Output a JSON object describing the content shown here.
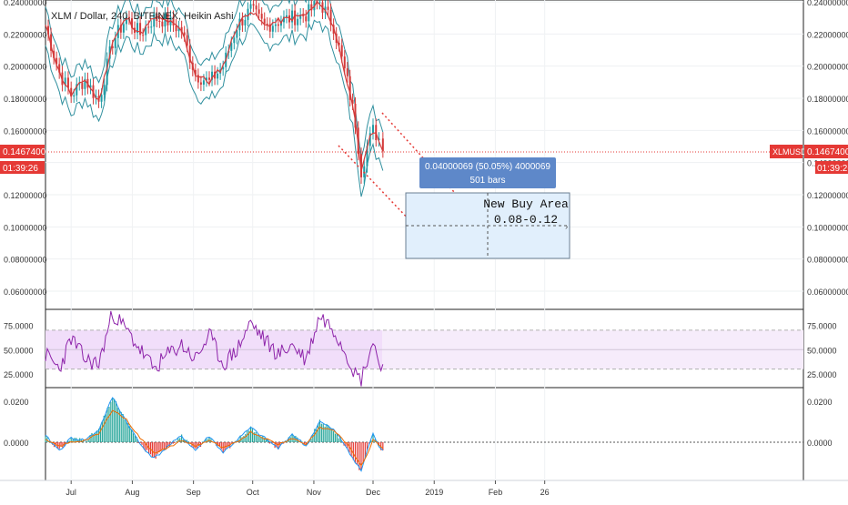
{
  "header": {
    "symbol_line": "XLM / Dollar, 240, BITFINEX, Heikin Ashi"
  },
  "price_tag": {
    "price": "0.14674000",
    "countdown": "01:39:26",
    "ticker": "XLMUSD"
  },
  "measure_box": {
    "line1": "0.04000069 (50.05%) 4000069",
    "line2": "501 bars"
  },
  "annotation": {
    "title": "New Buy Area",
    "range": "0.08-0.12"
  },
  "colors": {
    "candle_up": "#1f9ba4",
    "candle_down": "#d43a3a",
    "ema_fast": "#d23b3b",
    "band": "#2f8f9e",
    "osc_line": "#8e24aa",
    "osc_band_fill": "#f1defa",
    "price_line": "#e53935",
    "measure_box": "#5e88c9",
    "buy_area_fill": "#e1effc",
    "buy_area_border": "#6b7f93"
  },
  "chart_data": [
    {
      "type": "line",
      "title": "XLM / Dollar, 240, BITFINEX, Heikin Ashi",
      "x_tick_labels": [
        "Jul",
        "Aug",
        "Sep",
        "Oct",
        "Nov",
        "Dec",
        "2019",
        "Feb",
        "26"
      ],
      "y_tick_labels": [
        "0.06000000",
        "0.08000000",
        "0.10000000",
        "0.12000000",
        "0.14000000",
        "0.16000000",
        "0.18000000",
        "0.20000000",
        "0.22000000",
        "0.24000000"
      ],
      "ylim": [
        0.05,
        0.24
      ],
      "last_price": 0.14674,
      "x": [
        "2018-06-18",
        "2018-06-25",
        "2018-07-01",
        "2018-07-08",
        "2018-07-15",
        "2018-07-22",
        "2018-07-29",
        "2018-08-05",
        "2018-08-12",
        "2018-08-19",
        "2018-08-26",
        "2018-09-02",
        "2018-09-09",
        "2018-09-16",
        "2018-09-23",
        "2018-09-30",
        "2018-10-07",
        "2018-10-14",
        "2018-10-21",
        "2018-10-28",
        "2018-11-04",
        "2018-11-11",
        "2018-11-18",
        "2018-11-22",
        "2018-11-25",
        "2018-11-28",
        "2018-12-01",
        "2018-12-04",
        "2018-12-06"
      ],
      "series": [
        {
          "values": [
            0.225,
            0.196,
            0.182,
            0.192,
            0.178,
            0.215,
            0.23,
            0.22,
            0.23,
            0.228,
            0.222,
            0.195,
            0.19,
            0.2,
            0.225,
            0.235,
            0.225,
            0.228,
            0.23,
            0.232,
            0.24,
            0.225,
            0.19,
            0.165,
            0.135,
            0.15,
            0.16,
            0.155,
            0.147
          ]
        }
      ],
      "measure": {
        "from_price": 0.16,
        "to_price": 0.12,
        "text": "0.04000069 (50.05%) 4000069",
        "bars": "501 bars"
      },
      "buy_area": {
        "label": "New Buy Area",
        "range_text": "0.08-0.12",
        "from": 0.08,
        "to": 0.12
      }
    },
    {
      "type": "line",
      "y_tick_labels": [
        "25.0000",
        "50.0000",
        "75.0000"
      ],
      "ylim": [
        10,
        95
      ],
      "band": [
        30,
        70
      ],
      "x": [
        "2018-06-18",
        "2018-06-25",
        "2018-07-01",
        "2018-07-08",
        "2018-07-15",
        "2018-07-22",
        "2018-07-29",
        "2018-08-05",
        "2018-08-12",
        "2018-08-19",
        "2018-08-26",
        "2018-09-02",
        "2018-09-09",
        "2018-09-16",
        "2018-09-23",
        "2018-09-30",
        "2018-10-07",
        "2018-10-14",
        "2018-10-21",
        "2018-10-28",
        "2018-11-04",
        "2018-11-11",
        "2018-11-18",
        "2018-11-22",
        "2018-11-25",
        "2018-11-28",
        "2018-12-01",
        "2018-12-04",
        "2018-12-06"
      ],
      "series": [
        {
          "values": [
            45,
            30,
            62,
            40,
            35,
            88,
            70,
            50,
            30,
            45,
            55,
            40,
            65,
            35,
            50,
            78,
            60,
            45,
            55,
            40,
            85,
            72,
            45,
            25,
            20,
            40,
            58,
            38,
            35
          ]
        }
      ]
    },
    {
      "type": "line",
      "y_tick_labels": [
        "0.0000",
        "0.0200"
      ],
      "ylim": [
        -0.016,
        0.026
      ],
      "x": [
        "2018-06-18",
        "2018-06-25",
        "2018-07-01",
        "2018-07-08",
        "2018-07-15",
        "2018-07-22",
        "2018-07-29",
        "2018-08-05",
        "2018-08-12",
        "2018-08-19",
        "2018-08-26",
        "2018-09-02",
        "2018-09-09",
        "2018-09-16",
        "2018-09-23",
        "2018-09-30",
        "2018-10-07",
        "2018-10-14",
        "2018-10-21",
        "2018-10-28",
        "2018-11-04",
        "2018-11-11",
        "2018-11-18",
        "2018-11-22",
        "2018-11-25",
        "2018-11-28",
        "2018-12-01",
        "2018-12-04",
        "2018-12-06"
      ],
      "series": [
        {
          "values": [
            0.003,
            -0.004,
            0.002,
            0.001,
            0.006,
            0.022,
            0.01,
            -0.001,
            -0.008,
            -0.002,
            0.003,
            -0.004,
            0.003,
            -0.005,
            0.001,
            0.007,
            0.002,
            -0.003,
            0.004,
            -0.002,
            0.01,
            0.006,
            -0.003,
            -0.01,
            -0.014,
            -0.004,
            0.004,
            -0.002,
            -0.004
          ]
        },
        {
          "values": [
            0.001,
            -0.002,
            0.0,
            0.001,
            0.004,
            0.016,
            0.011,
            0.002,
            -0.005,
            -0.003,
            0.001,
            -0.002,
            0.001,
            -0.003,
            0.0,
            0.005,
            0.002,
            -0.001,
            0.002,
            -0.001,
            0.007,
            0.006,
            -0.001,
            -0.007,
            -0.011,
            -0.006,
            0.001,
            -0.001,
            -0.003
          ]
        }
      ]
    }
  ]
}
